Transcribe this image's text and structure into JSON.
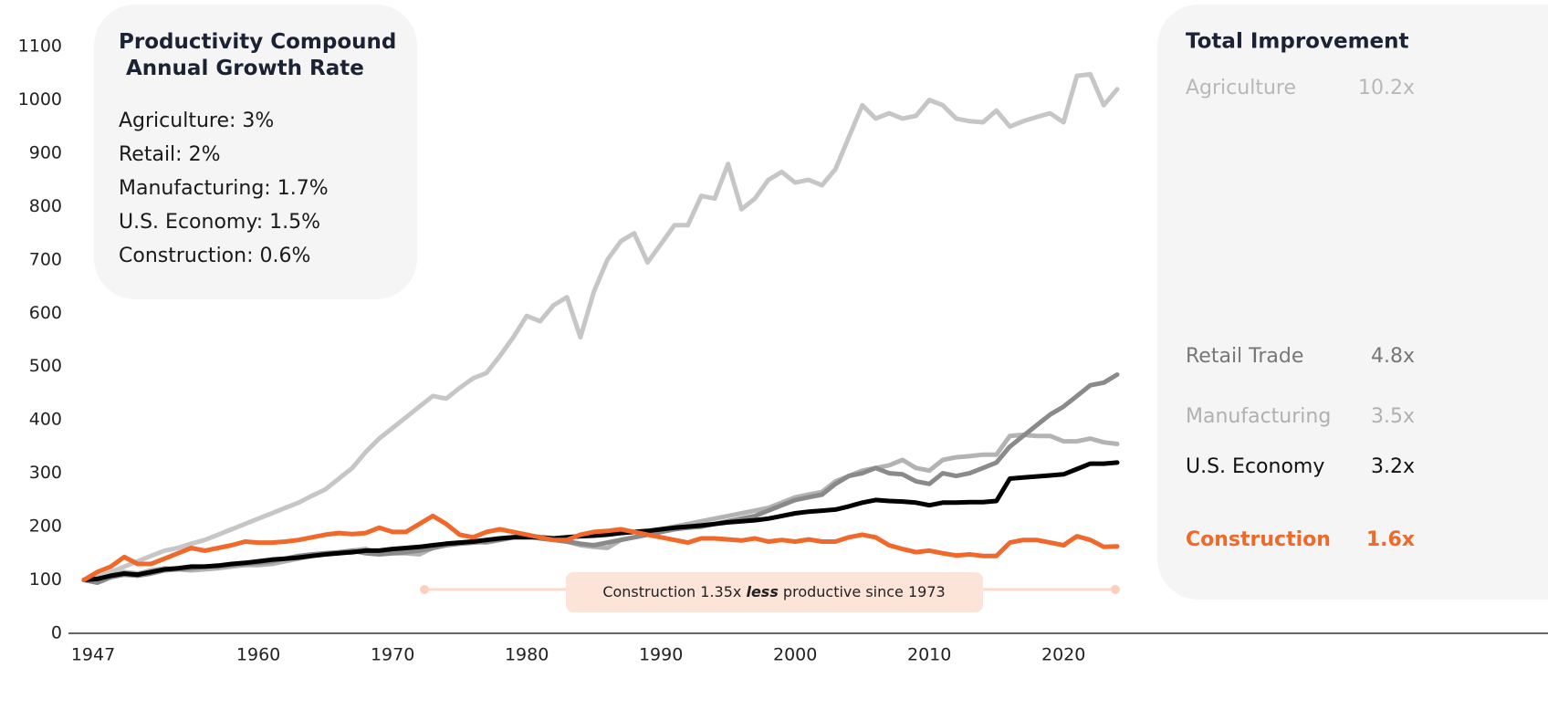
{
  "chart_data": {
    "type": "line",
    "x": [
      1947,
      1948,
      1949,
      1950,
      1951,
      1952,
      1953,
      1954,
      1955,
      1956,
      1957,
      1958,
      1959,
      1960,
      1961,
      1962,
      1963,
      1964,
      1965,
      1966,
      1967,
      1968,
      1969,
      1970,
      1971,
      1972,
      1973,
      1974,
      1975,
      1976,
      1977,
      1978,
      1979,
      1980,
      1981,
      1982,
      1983,
      1984,
      1985,
      1986,
      1987,
      1988,
      1989,
      1990,
      1991,
      1992,
      1993,
      1994,
      1995,
      1996,
      1997,
      1998,
      1999,
      2000,
      2001,
      2002,
      2003,
      2004,
      2005,
      2006,
      2007,
      2008,
      2009,
      2010,
      2011,
      2012,
      2013,
      2014,
      2015,
      2016,
      2017,
      2018,
      2019,
      2020,
      2021,
      2022,
      2023,
      2024
    ],
    "xlim": [
      1947,
      2024
    ],
    "xticks": [
      1947,
      1960,
      1970,
      1980,
      1990,
      2000,
      2010,
      2020
    ],
    "ylim": [
      0,
      1100
    ],
    "yticks": [
      0,
      100,
      200,
      300,
      400,
      500,
      600,
      700,
      800,
      900,
      1000,
      1100
    ],
    "series": [
      {
        "name": "Agriculture",
        "color": "#c6c6c6",
        "values": [
          100,
          105,
          115,
          125,
          135,
          145,
          155,
          160,
          168,
          175,
          185,
          195,
          205,
          215,
          225,
          235,
          245,
          258,
          270,
          290,
          310,
          340,
          365,
          385,
          405,
          425,
          445,
          440,
          460,
          478,
          488,
          520,
          555,
          595,
          585,
          615,
          630,
          555,
          640,
          700,
          735,
          750,
          695,
          730,
          765,
          765,
          820,
          815,
          880,
          795,
          815,
          850,
          865,
          845,
          850,
          840,
          870,
          930,
          990,
          965,
          975,
          965,
          970,
          1000,
          990,
          965,
          960,
          958,
          980,
          950,
          960,
          968,
          975,
          958,
          1045,
          1048,
          990,
          1020
        ]
      },
      {
        "name": "Manufacturing",
        "color": "#b3b3b3",
        "values": [
          100,
          100,
          108,
          115,
          112,
          118,
          122,
          120,
          118,
          120,
          122,
          125,
          128,
          128,
          130,
          135,
          140,
          145,
          150,
          150,
          155,
          158,
          150,
          150,
          150,
          148,
          160,
          168,
          170,
          172,
          170,
          175,
          180,
          185,
          178,
          175,
          172,
          165,
          162,
          160,
          175,
          180,
          185,
          195,
          200,
          205,
          210,
          215,
          220,
          225,
          230,
          235,
          245,
          255,
          260,
          265,
          285,
          295,
          305,
          310,
          315,
          325,
          310,
          305,
          325,
          330,
          332,
          335,
          335,
          370,
          372,
          370,
          370,
          360,
          360,
          365,
          358,
          355
        ]
      },
      {
        "name": "Retail Trade",
        "color": "#8a8a8a",
        "values": [
          100,
          95,
          105,
          110,
          108,
          112,
          118,
          120,
          122,
          125,
          125,
          128,
          130,
          132,
          135,
          140,
          145,
          148,
          150,
          152,
          155,
          150,
          148,
          150,
          152,
          155,
          160,
          165,
          168,
          170,
          172,
          175,
          180,
          182,
          178,
          175,
          172,
          168,
          165,
          170,
          175,
          180,
          185,
          190,
          195,
          198,
          200,
          205,
          210,
          215,
          220,
          230,
          240,
          250,
          255,
          260,
          280,
          295,
          300,
          310,
          300,
          298,
          285,
          280,
          300,
          295,
          300,
          310,
          320,
          350,
          370,
          390,
          410,
          425,
          445,
          465,
          470,
          485
        ]
      },
      {
        "name": "U.S. Economy",
        "color": "#000000",
        "values": [
          100,
          102,
          108,
          112,
          110,
          115,
          120,
          122,
          125,
          125,
          127,
          130,
          132,
          135,
          138,
          140,
          142,
          145,
          148,
          150,
          152,
          155,
          155,
          158,
          160,
          162,
          165,
          168,
          170,
          172,
          175,
          178,
          180,
          180,
          180,
          178,
          180,
          182,
          183,
          185,
          188,
          190,
          192,
          195,
          198,
          200,
          202,
          205,
          208,
          210,
          212,
          215,
          220,
          225,
          228,
          230,
          232,
          238,
          245,
          250,
          248,
          247,
          245,
          240,
          245,
          245,
          246,
          246,
          248,
          290,
          292,
          294,
          296,
          298,
          308,
          318,
          318,
          320
        ]
      },
      {
        "name": "Construction",
        "color": "#f0692b",
        "values": [
          100,
          115,
          125,
          143,
          130,
          130,
          140,
          150,
          160,
          155,
          160,
          165,
          172,
          170,
          170,
          172,
          175,
          180,
          185,
          188,
          186,
          188,
          198,
          190,
          190,
          205,
          220,
          205,
          185,
          180,
          190,
          195,
          190,
          185,
          180,
          175,
          175,
          185,
          190,
          192,
          195,
          190,
          185,
          180,
          175,
          170,
          178,
          178,
          176,
          174,
          178,
          172,
          175,
          172,
          176,
          172,
          172,
          180,
          185,
          180,
          165,
          158,
          152,
          155,
          150,
          146,
          148,
          145,
          145,
          170,
          175,
          175,
          170,
          165,
          182,
          175,
          162,
          163
        ]
      }
    ],
    "cagr_box": {
      "title": "Productivity Compound Annual Growth Rate",
      "items": [
        "Agriculture: 3%",
        "Retail: 2%",
        "Manufacturing: 1.7%",
        "U.S. Economy: 1.5%",
        "Construction: 0.6%"
      ]
    },
    "improvement_box": {
      "title": "Total Improvement",
      "items": [
        {
          "name": "Agriculture",
          "value": "10.2x",
          "color": "#b8b8b8"
        },
        {
          "name": "Retail Trade",
          "value": "4.8x",
          "color": "#777777"
        },
        {
          "name": "Manufacturing",
          "value": "3.5x",
          "color": "#b0b0b0"
        },
        {
          "name": "U.S. Economy",
          "value": "3.2x",
          "color": "#111111"
        },
        {
          "name": "Construction",
          "value": "1.6x",
          "color": "#f0692b"
        }
      ]
    },
    "annotation": {
      "before": "Construction 1.35x ",
      "emphasis": "less",
      "after": " productive since 1973"
    }
  }
}
